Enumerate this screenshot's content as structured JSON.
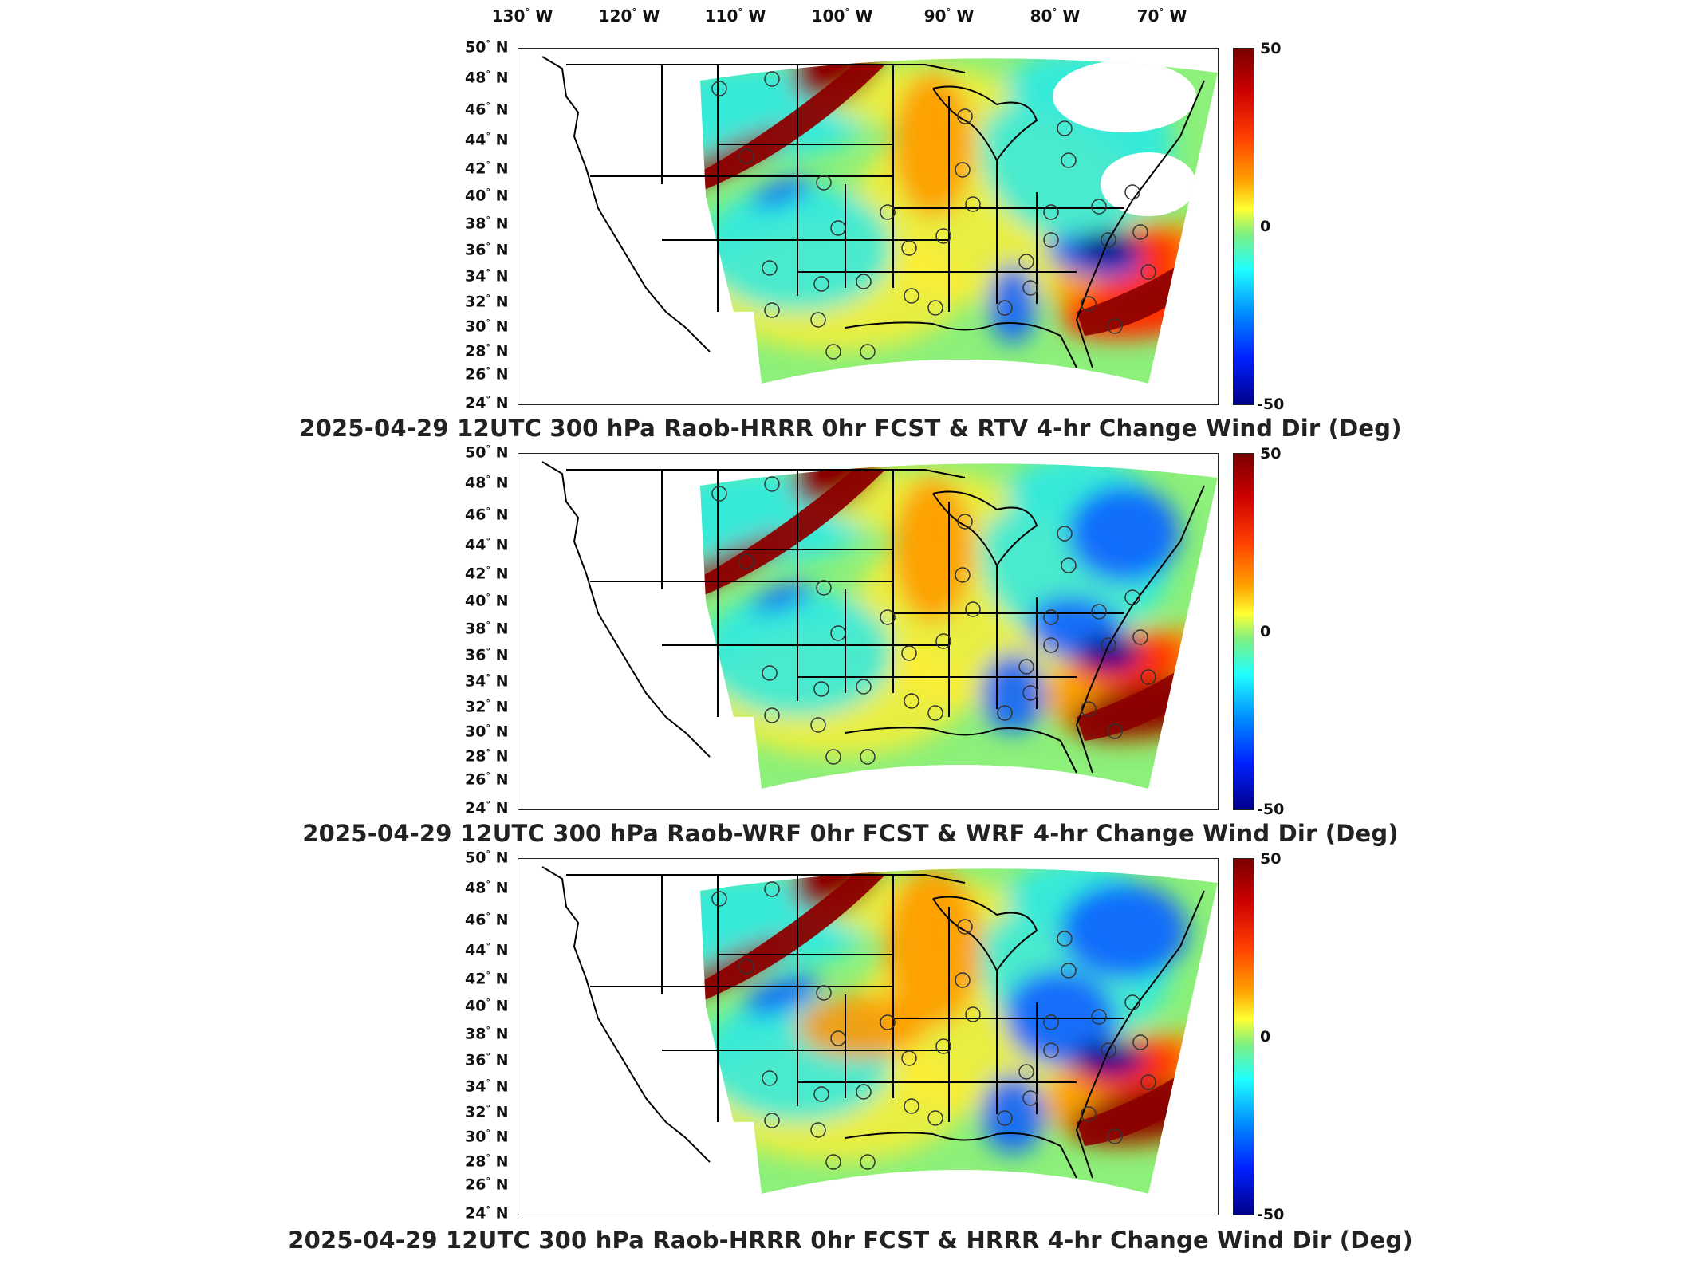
{
  "lon_labels": [
    {
      "deg": "130",
      "hemi": "W"
    },
    {
      "deg": "120",
      "hemi": "W"
    },
    {
      "deg": "110",
      "hemi": "W"
    },
    {
      "deg": "100",
      "hemi": "W"
    },
    {
      "deg": "90",
      "hemi": "W"
    },
    {
      "deg": "80",
      "hemi": "W"
    },
    {
      "deg": "70",
      "hemi": "W"
    }
  ],
  "lat_labels": [
    {
      "deg": "50",
      "hemi": "N"
    },
    {
      "deg": "48",
      "hemi": "N"
    },
    {
      "deg": "46",
      "hemi": "N"
    },
    {
      "deg": "44",
      "hemi": "N"
    },
    {
      "deg": "42",
      "hemi": "N"
    },
    {
      "deg": "40",
      "hemi": "N"
    },
    {
      "deg": "38",
      "hemi": "N"
    },
    {
      "deg": "36",
      "hemi": "N"
    },
    {
      "deg": "34",
      "hemi": "N"
    },
    {
      "deg": "32",
      "hemi": "N"
    },
    {
      "deg": "30",
      "hemi": "N"
    },
    {
      "deg": "28",
      "hemi": "N"
    },
    {
      "deg": "26",
      "hemi": "N"
    },
    {
      "deg": "24",
      "hemi": "N"
    }
  ],
  "colorbar": {
    "max": "50",
    "mid": "0",
    "min": "-50"
  },
  "colors": {
    "dark_red": "#8b0000",
    "red": "#ff2a00",
    "orange": "#ff9900",
    "yellow": "#ffee33",
    "green": "#8cf07a",
    "cyan": "#22e8f0",
    "blue": "#1060ff",
    "dark_blue": "#00008b"
  },
  "panels": [
    {
      "title": "2025-04-29 12UTC 300 hPa Raob-HRRR 0hr FCST & RTV 4-hr Change Wind Dir (Deg)"
    },
    {
      "title": "2025-04-29 12UTC 300 hPa Raob-WRF 0hr FCST & WRF 4-hr Change Wind Dir (Deg)"
    },
    {
      "title": "2025-04-29 12UTC 300 hPa Raob-HRRR 0hr FCST & HRRR 4-hr Change Wind Dir (Deg)"
    }
  ]
}
